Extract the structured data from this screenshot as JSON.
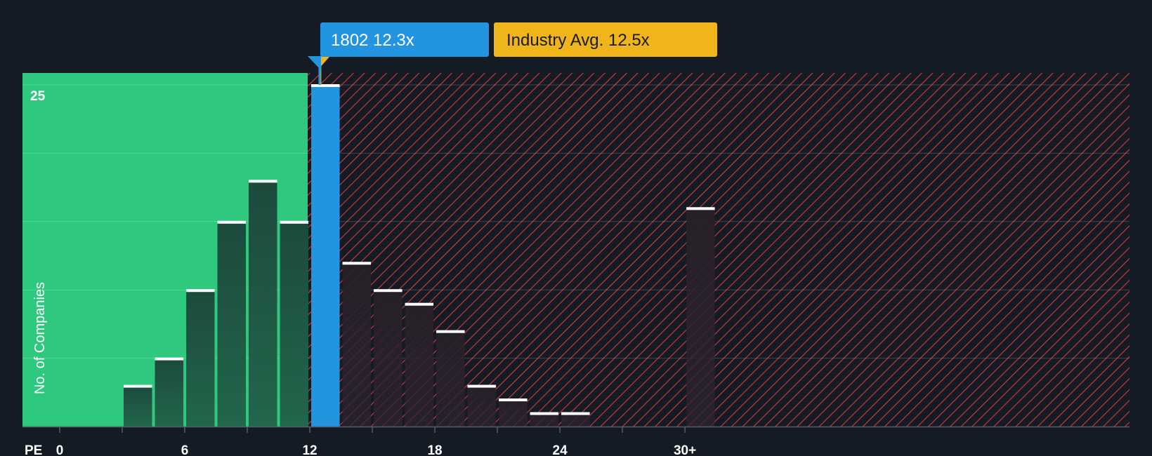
{
  "chart_data": {
    "type": "bar",
    "xlabel": "PE",
    "ylabel": "No. of Companies",
    "xlim": [
      -0.33,
      31.5
    ],
    "ylim": [
      0,
      26
    ],
    "x_ticks": [
      {
        "value": 0,
        "label": "0"
      },
      {
        "value": 6,
        "label": "6"
      },
      {
        "value": 12,
        "label": "12"
      },
      {
        "value": 18,
        "label": "18"
      },
      {
        "value": 24,
        "label": "24"
      },
      {
        "value": 30,
        "label": "30+"
      }
    ],
    "y_ticks": [
      {
        "value": 25,
        "label": "25"
      }
    ],
    "bin_width": 1.5,
    "bins": [
      {
        "start": 3.0,
        "count": 3
      },
      {
        "start": 4.5,
        "count": 5
      },
      {
        "start": 6.0,
        "count": 10
      },
      {
        "start": 7.5,
        "count": 15
      },
      {
        "start": 9.0,
        "count": 18
      },
      {
        "start": 10.5,
        "count": 15
      },
      {
        "start": 12.0,
        "count": 25,
        "highlight": true
      },
      {
        "start": 13.5,
        "count": 12
      },
      {
        "start": 15.0,
        "count": 10
      },
      {
        "start": 16.5,
        "count": 9
      },
      {
        "start": 18.0,
        "count": 7
      },
      {
        "start": 19.5,
        "count": 3
      },
      {
        "start": 21.0,
        "count": 2
      },
      {
        "start": 22.5,
        "count": 1
      },
      {
        "start": 24.0,
        "count": 1
      },
      {
        "start": 30.0,
        "count": 16
      }
    ],
    "company": {
      "label": "1802 12.3x",
      "value": 12.3
    },
    "industry_avg": {
      "label": "Industry Avg. 12.5x",
      "value": 12.5
    },
    "colors": {
      "background": "#151b24",
      "undervalued_zone": "#2ec97e",
      "overvalued_hatch": "#e0393e",
      "company_bar": "#2394df",
      "company_callout": "#2394df",
      "industry_callout": "#f0b51b",
      "bar_fill_green": "#1f4d3f",
      "bar_fill_red": "#2a2430",
      "bar_cap": "#ffffff"
    }
  }
}
